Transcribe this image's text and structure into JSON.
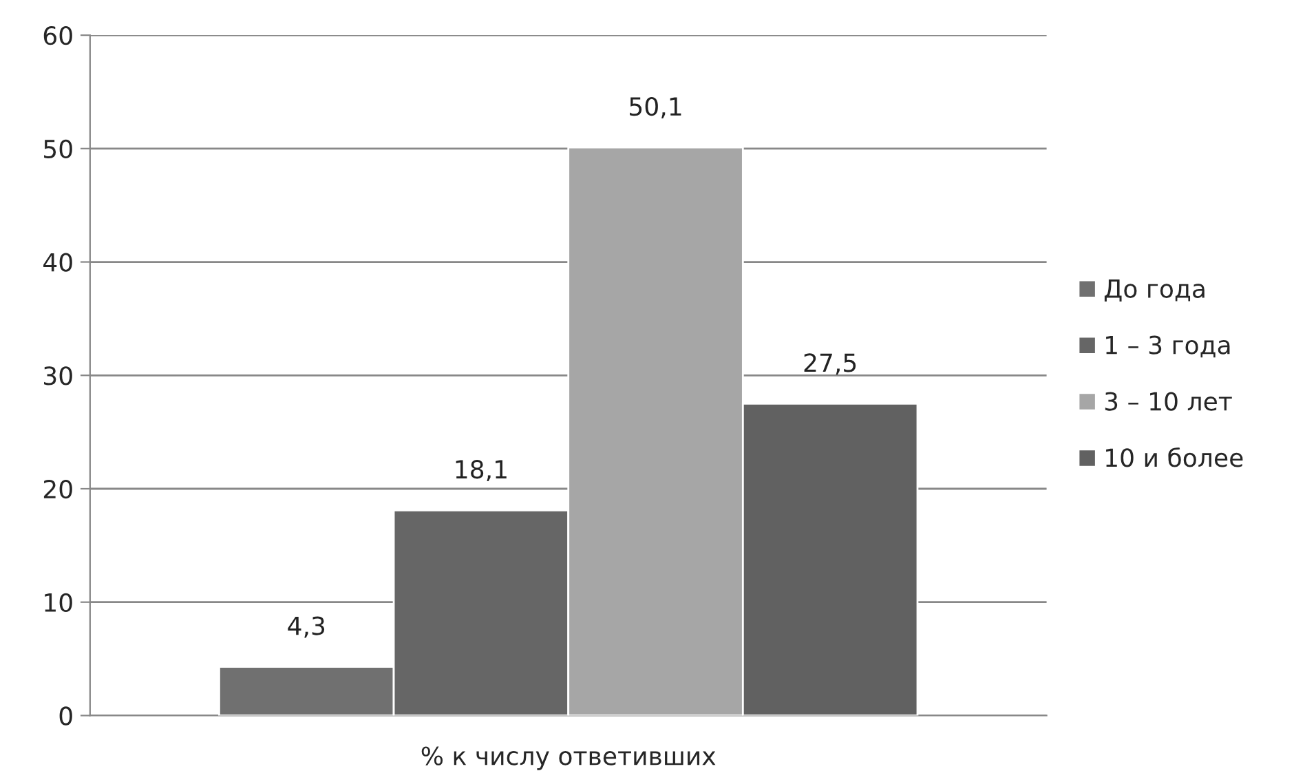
{
  "chart_data": {
    "type": "bar",
    "categories": [
      "% к числу ответивших"
    ],
    "series": [
      {
        "name": "До года",
        "color": "#707070",
        "values": [
          4.3
        ],
        "value_labels": [
          "4,3"
        ]
      },
      {
        "name": "1 – 3 года",
        "color": "#666666",
        "values": [
          18.1
        ],
        "value_labels": [
          "18,1"
        ]
      },
      {
        "name": "3 – 10 лет",
        "color": "#a6a6a6",
        "values": [
          50.1
        ],
        "value_labels": [
          "50,1"
        ]
      },
      {
        "name": "10 и более",
        "color": "#616161",
        "values": [
          27.5
        ],
        "value_labels": [
          "27,5"
        ]
      }
    ],
    "ylim": [
      0,
      60
    ],
    "yticks": [
      0,
      10,
      20,
      30,
      40,
      50,
      60
    ],
    "grid": "y",
    "legend": "right"
  }
}
